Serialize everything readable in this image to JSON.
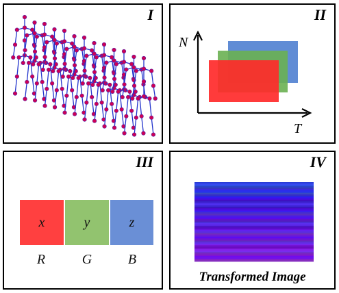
{
  "panels": {
    "p1": {
      "label": "I"
    },
    "p2": {
      "label": "II",
      "y_axis": "N",
      "x_axis": "T",
      "layers": [
        {
          "color": "#4f7fd0"
        },
        {
          "color": "#6ab052"
        },
        {
          "color": "#ff2a2a"
        }
      ]
    },
    "p3": {
      "label": "III",
      "channels": [
        {
          "symbol": "x",
          "channel": "R",
          "color": "#ff4040"
        },
        {
          "symbol": "y",
          "channel": "G",
          "color": "#92c36f"
        },
        {
          "symbol": "z",
          "channel": "B",
          "color": "#6a8fd6"
        }
      ]
    },
    "p4": {
      "label": "IV",
      "caption": "Transformed Image"
    }
  },
  "colors": {
    "joint": "#cc0055",
    "bone": "#2233cc"
  }
}
